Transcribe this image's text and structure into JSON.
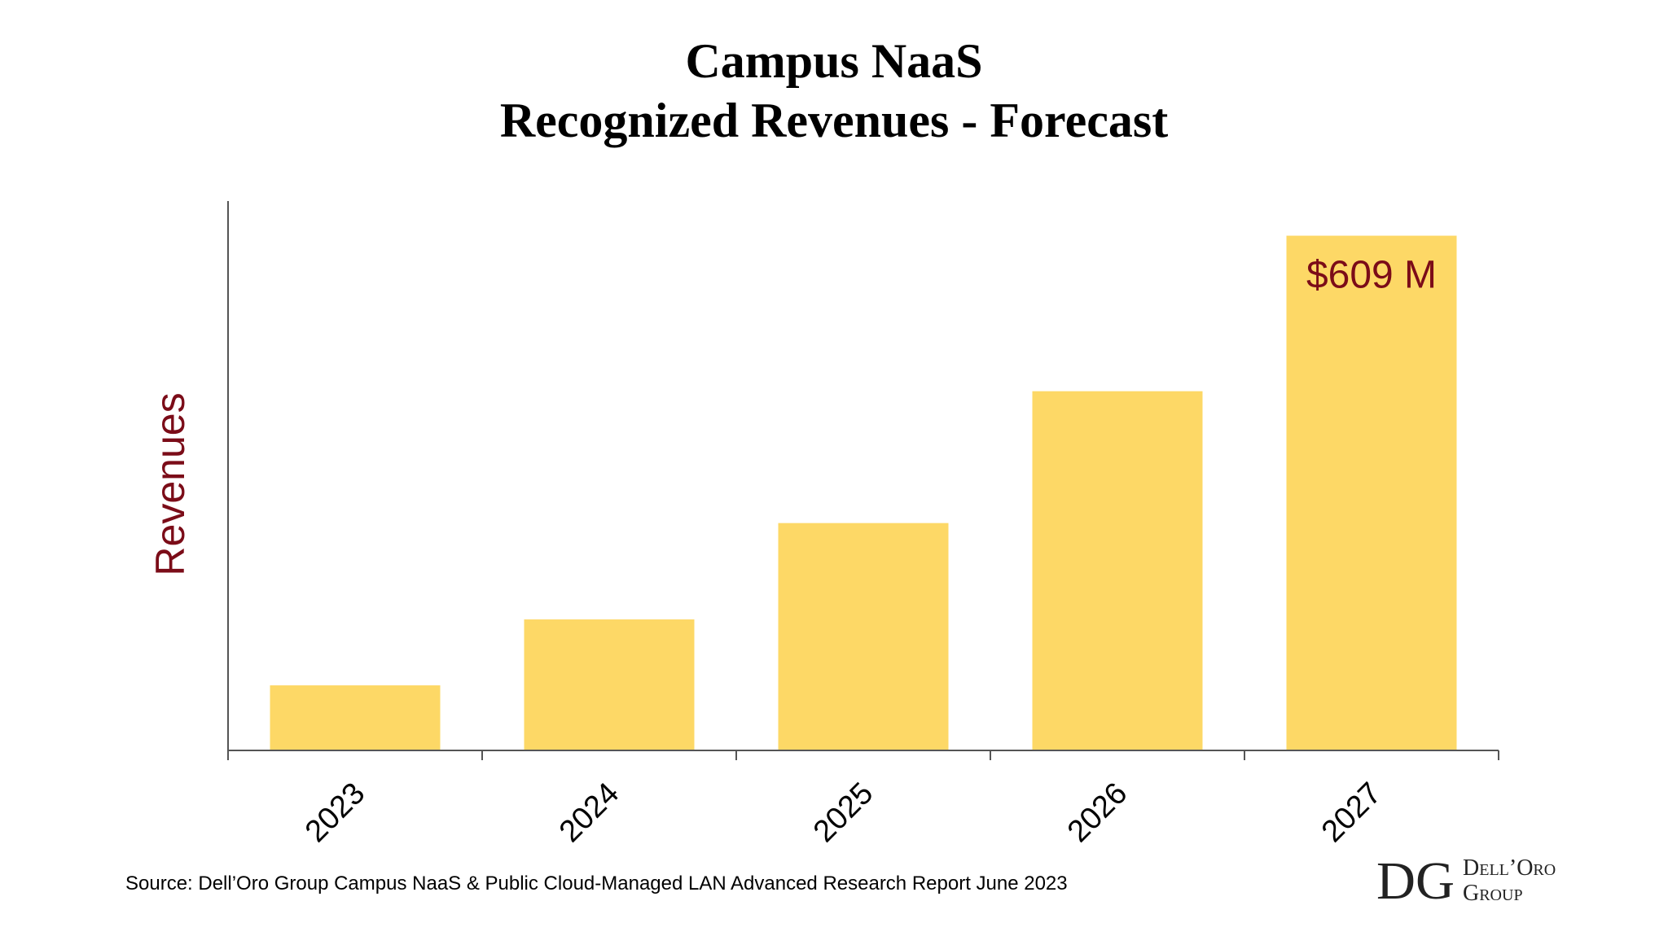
{
  "chart_data": {
    "type": "bar",
    "title": "Campus NaaS",
    "subtitle": "Recognized Revenues - Forecast",
    "xlabel": "",
    "ylabel": "Revenues",
    "categories": [
      "2023",
      "2024",
      "2025",
      "2026",
      "2027"
    ],
    "values": [
      77,
      155,
      269,
      425,
      609
    ],
    "unit": "$M",
    "ylim": [
      0,
      650
    ],
    "grid": false,
    "data_labels": [
      {
        "category": "2027",
        "text": "$609 M"
      }
    ],
    "colors": {
      "bar": "#FDD866",
      "ylabel": "#7B0C18",
      "data_label": "#7B0C18",
      "axis": "#555555"
    }
  },
  "source": "Source: Dell’Oro Group Campus NaaS & Public Cloud-Managed LAN Advanced Research Report June 2023",
  "logo": {
    "monogram": "DG",
    "line1": "Dell’Oro",
    "line2": "Group",
    "color": "#B5532A"
  }
}
